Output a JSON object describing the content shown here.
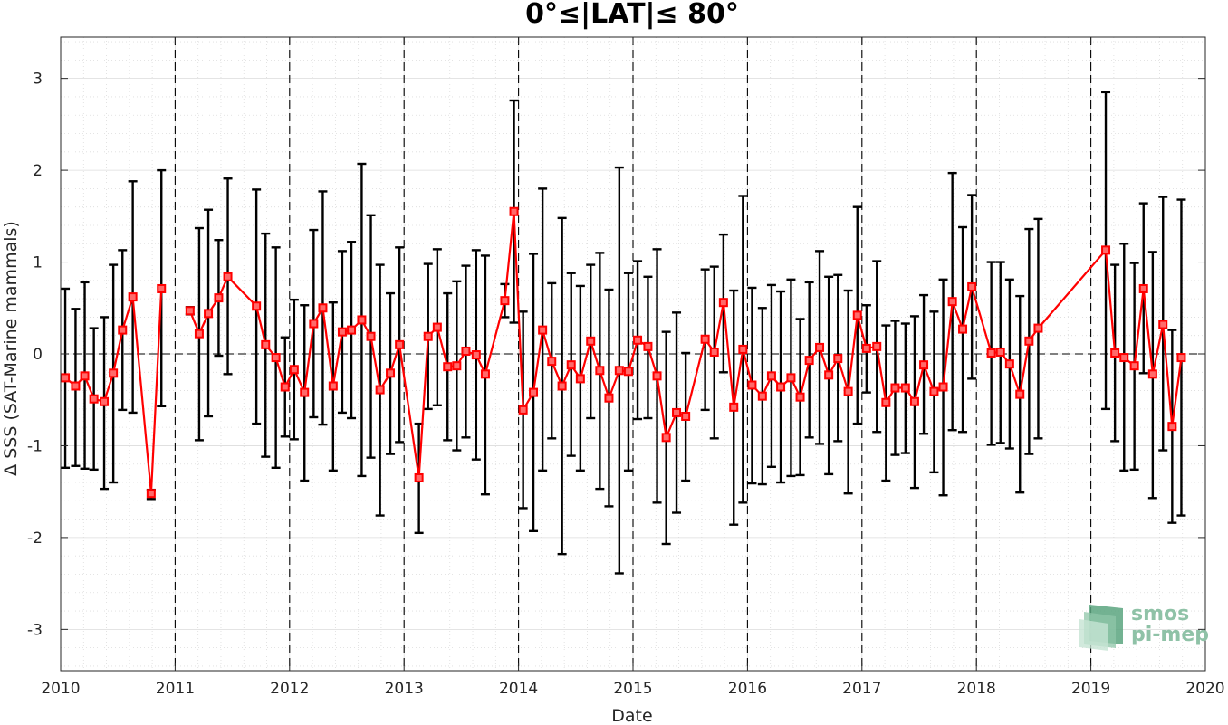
{
  "chart_data": {
    "type": "line",
    "title": "0°≤|LAT|≤ 80°",
    "xlabel": "Date",
    "ylabel": "Δ SSS (SAT-Marine mammals)",
    "xlim": [
      2010,
      2020
    ],
    "ylim": [
      -3.45,
      3.45
    ],
    "x_ticks": [
      "2010",
      "2011",
      "2012",
      "2013",
      "2014",
      "2015",
      "2016",
      "2017",
      "2018",
      "2019",
      "2020"
    ],
    "y_ticks": [
      "-3",
      "-2",
      "-1",
      "0",
      "1",
      "2",
      "3"
    ],
    "grid": true,
    "year_dividers": [
      2011,
      2012,
      2013,
      2014,
      2015,
      2016,
      2017,
      2018,
      2019
    ],
    "zero_line": true,
    "colors": {
      "series": "#ff0000",
      "errorbar": "#000000",
      "grid": "#dcdcdc",
      "logo": "#8fc2a7"
    },
    "series": [
      {
        "marker": "square",
        "error_bars": true,
        "points": [
          {
            "x": 2010.04,
            "y": -0.26,
            "lo": -1.24,
            "hi": 0.71
          },
          {
            "x": 2010.13,
            "y": -0.35,
            "lo": -1.22,
            "hi": 0.49
          },
          {
            "x": 2010.21,
            "y": -0.24,
            "lo": -1.25,
            "hi": 0.78
          },
          {
            "x": 2010.29,
            "y": -0.49,
            "lo": -1.26,
            "hi": 0.28
          },
          {
            "x": 2010.38,
            "y": -0.52,
            "lo": -1.47,
            "hi": 0.4
          },
          {
            "x": 2010.46,
            "y": -0.21,
            "lo": -1.4,
            "hi": 0.97
          },
          {
            "x": 2010.54,
            "y": 0.26,
            "lo": -0.61,
            "hi": 1.13
          },
          {
            "x": 2010.63,
            "y": 0.62,
            "lo": -0.64,
            "hi": 1.88
          },
          {
            "x": 2010.79,
            "y": -1.52,
            "lo": -1.58,
            "hi": -1.48
          },
          {
            "x": 2010.88,
            "y": 0.71,
            "lo": -0.57,
            "hi": 2.0
          },
          {
            "x": null,
            "y": null
          },
          {
            "x": 2011.13,
            "y": 0.47,
            "lo": 0.43,
            "hi": 0.51
          },
          {
            "x": 2011.21,
            "y": 0.22,
            "lo": -0.94,
            "hi": 1.37
          },
          {
            "x": 2011.29,
            "y": 0.44,
            "lo": -0.68,
            "hi": 1.57
          },
          {
            "x": 2011.38,
            "y": 0.61,
            "lo": -0.02,
            "hi": 1.24
          },
          {
            "x": 2011.46,
            "y": 0.84,
            "lo": -0.22,
            "hi": 1.91
          },
          {
            "x": 2011.71,
            "y": 0.52,
            "lo": -0.76,
            "hi": 1.79
          },
          {
            "x": 2011.79,
            "y": 0.1,
            "lo": -1.12,
            "hi": 1.31
          },
          {
            "x": 2011.88,
            "y": -0.04,
            "lo": -1.24,
            "hi": 1.16
          },
          {
            "x": 2011.96,
            "y": -0.36,
            "lo": -0.9,
            "hi": 0.18
          },
          {
            "x": 2012.04,
            "y": -0.17,
            "lo": -0.93,
            "hi": 0.59
          },
          {
            "x": 2012.13,
            "y": -0.42,
            "lo": -1.38,
            "hi": 0.53
          },
          {
            "x": 2012.21,
            "y": 0.33,
            "lo": -0.69,
            "hi": 1.35
          },
          {
            "x": 2012.29,
            "y": 0.5,
            "lo": -0.77,
            "hi": 1.77
          },
          {
            "x": 2012.38,
            "y": -0.35,
            "lo": -1.27,
            "hi": 0.56
          },
          {
            "x": 2012.46,
            "y": 0.24,
            "lo": -0.64,
            "hi": 1.12
          },
          {
            "x": 2012.54,
            "y": 0.26,
            "lo": -0.7,
            "hi": 1.22
          },
          {
            "x": 2012.63,
            "y": 0.37,
            "lo": -1.33,
            "hi": 2.07
          },
          {
            "x": 2012.71,
            "y": 0.19,
            "lo": -1.13,
            "hi": 1.51
          },
          {
            "x": 2012.79,
            "y": -0.39,
            "lo": -1.76,
            "hi": 0.97
          },
          {
            "x": 2012.88,
            "y": -0.21,
            "lo": -1.09,
            "hi": 0.66
          },
          {
            "x": 2012.96,
            "y": 0.1,
            "lo": -0.96,
            "hi": 1.16
          },
          {
            "x": 2013.13,
            "y": -1.35,
            "lo": -1.95,
            "hi": -0.76
          },
          {
            "x": 2013.21,
            "y": 0.19,
            "lo": -0.6,
            "hi": 0.98
          },
          {
            "x": 2013.29,
            "y": 0.29,
            "lo": -0.56,
            "hi": 1.14
          },
          {
            "x": 2013.38,
            "y": -0.14,
            "lo": -0.94,
            "hi": 0.66
          },
          {
            "x": 2013.46,
            "y": -0.13,
            "lo": -1.05,
            "hi": 0.79
          },
          {
            "x": 2013.54,
            "y": 0.03,
            "lo": -0.91,
            "hi": 0.96
          },
          {
            "x": 2013.63,
            "y": -0.01,
            "lo": -1.15,
            "hi": 1.13
          },
          {
            "x": 2013.71,
            "y": -0.22,
            "lo": -1.53,
            "hi": 1.07
          },
          {
            "x": 2013.88,
            "y": 0.58,
            "lo": 0.4,
            "hi": 0.76
          },
          {
            "x": 2013.96,
            "y": 1.55,
            "lo": 0.34,
            "hi": 2.76
          },
          {
            "x": 2014.04,
            "y": -0.61,
            "lo": -1.68,
            "hi": 0.46
          },
          {
            "x": 2014.13,
            "y": -0.42,
            "lo": -1.93,
            "hi": 1.09
          },
          {
            "x": 2014.21,
            "y": 0.26,
            "lo": -1.27,
            "hi": 1.8
          },
          {
            "x": 2014.29,
            "y": -0.08,
            "lo": -0.92,
            "hi": 0.77
          },
          {
            "x": 2014.38,
            "y": -0.35,
            "lo": -2.18,
            "hi": 1.48
          },
          {
            "x": 2014.46,
            "y": -0.12,
            "lo": -1.11,
            "hi": 0.88
          },
          {
            "x": 2014.54,
            "y": -0.27,
            "lo": -1.27,
            "hi": 0.74
          },
          {
            "x": 2014.63,
            "y": 0.14,
            "lo": -0.7,
            "hi": 0.97
          },
          {
            "x": 2014.71,
            "y": -0.18,
            "lo": -1.47,
            "hi": 1.1
          },
          {
            "x": 2014.79,
            "y": -0.48,
            "lo": -1.66,
            "hi": 0.7
          },
          {
            "x": 2014.88,
            "y": -0.18,
            "lo": -2.39,
            "hi": 2.03
          },
          {
            "x": 2014.96,
            "y": -0.19,
            "lo": -1.27,
            "hi": 0.88
          },
          {
            "x": 2015.04,
            "y": 0.15,
            "lo": -0.71,
            "hi": 1.01
          },
          {
            "x": 2015.13,
            "y": 0.08,
            "lo": -0.7,
            "hi": 0.84
          },
          {
            "x": 2015.21,
            "y": -0.24,
            "lo": -1.62,
            "hi": 1.14
          },
          {
            "x": 2015.29,
            "y": -0.91,
            "lo": -2.07,
            "hi": 0.24
          },
          {
            "x": 2015.38,
            "y": -0.64,
            "lo": -1.73,
            "hi": 0.45
          },
          {
            "x": 2015.46,
            "y": -0.68,
            "lo": -1.38,
            "hi": 0.01
          },
          {
            "x": 2015.63,
            "y": 0.16,
            "lo": -0.61,
            "hi": 0.92
          },
          {
            "x": 2015.71,
            "y": 0.02,
            "lo": -0.92,
            "hi": 0.95
          },
          {
            "x": 2015.79,
            "y": 0.56,
            "lo": -0.2,
            "hi": 1.3
          },
          {
            "x": 2015.88,
            "y": -0.58,
            "lo": -1.86,
            "hi": 0.69
          },
          {
            "x": 2015.96,
            "y": 0.05,
            "lo": -1.62,
            "hi": 1.72
          },
          {
            "x": 2016.04,
            "y": -0.34,
            "lo": -1.41,
            "hi": 0.72
          },
          {
            "x": 2016.13,
            "y": -0.46,
            "lo": -1.42,
            "hi": 0.5
          },
          {
            "x": 2016.21,
            "y": -0.24,
            "lo": -1.23,
            "hi": 0.75
          },
          {
            "x": 2016.29,
            "y": -0.36,
            "lo": -1.4,
            "hi": 0.68
          },
          {
            "x": 2016.38,
            "y": -0.26,
            "lo": -1.33,
            "hi": 0.81
          },
          {
            "x": 2016.46,
            "y": -0.47,
            "lo": -1.32,
            "hi": 0.38
          },
          {
            "x": 2016.54,
            "y": -0.07,
            "lo": -0.91,
            "hi": 0.78
          },
          {
            "x": 2016.63,
            "y": 0.07,
            "lo": -0.98,
            "hi": 1.12
          },
          {
            "x": 2016.71,
            "y": -0.23,
            "lo": -1.31,
            "hi": 0.84
          },
          {
            "x": 2016.79,
            "y": -0.05,
            "lo": -0.95,
            "hi": 0.86
          },
          {
            "x": 2016.88,
            "y": -0.41,
            "lo": -1.52,
            "hi": 0.69
          },
          {
            "x": 2016.96,
            "y": 0.42,
            "lo": -0.76,
            "hi": 1.6
          },
          {
            "x": 2017.04,
            "y": 0.06,
            "lo": -0.42,
            "hi": 0.53
          },
          {
            "x": 2017.13,
            "y": 0.08,
            "lo": -0.85,
            "hi": 1.01
          },
          {
            "x": 2017.21,
            "y": -0.53,
            "lo": -1.38,
            "hi": 0.31
          },
          {
            "x": 2017.29,
            "y": -0.37,
            "lo": -1.1,
            "hi": 0.36
          },
          {
            "x": 2017.38,
            "y": -0.37,
            "lo": -1.08,
            "hi": 0.33
          },
          {
            "x": 2017.46,
            "y": -0.52,
            "lo": -1.46,
            "hi": 0.41
          },
          {
            "x": 2017.54,
            "y": -0.12,
            "lo": -0.87,
            "hi": 0.64
          },
          {
            "x": 2017.63,
            "y": -0.41,
            "lo": -1.29,
            "hi": 0.46
          },
          {
            "x": 2017.71,
            "y": -0.36,
            "lo": -1.54,
            "hi": 0.81
          },
          {
            "x": 2017.79,
            "y": 0.57,
            "lo": -0.83,
            "hi": 1.97
          },
          {
            "x": 2017.88,
            "y": 0.27,
            "lo": -0.85,
            "hi": 1.38
          },
          {
            "x": 2017.96,
            "y": 0.73,
            "lo": -0.27,
            "hi": 1.73
          },
          {
            "x": 2018.13,
            "y": 0.01,
            "lo": -0.99,
            "hi": 1.0
          },
          {
            "x": 2018.21,
            "y": 0.02,
            "lo": -0.97,
            "hi": 1.0
          },
          {
            "x": 2018.29,
            "y": -0.11,
            "lo": -1.03,
            "hi": 0.81
          },
          {
            "x": 2018.38,
            "y": -0.44,
            "lo": -1.51,
            "hi": 0.63
          },
          {
            "x": 2018.46,
            "y": 0.14,
            "lo": -1.09,
            "hi": 1.36
          },
          {
            "x": 2018.54,
            "y": 0.28,
            "lo": -0.92,
            "hi": 1.47
          },
          {
            "x": 2019.13,
            "y": 1.13,
            "lo": -0.6,
            "hi": 2.85
          },
          {
            "x": 2019.21,
            "y": 0.01,
            "lo": -0.95,
            "hi": 0.97
          },
          {
            "x": 2019.29,
            "y": -0.04,
            "lo": -1.27,
            "hi": 1.2
          },
          {
            "x": 2019.38,
            "y": -0.13,
            "lo": -1.26,
            "hi": 0.99
          },
          {
            "x": 2019.46,
            "y": 0.71,
            "lo": -0.21,
            "hi": 1.64
          },
          {
            "x": 2019.54,
            "y": -0.22,
            "lo": -1.57,
            "hi": 1.11
          },
          {
            "x": 2019.63,
            "y": 0.32,
            "lo": -1.05,
            "hi": 1.71
          },
          {
            "x": 2019.71,
            "y": -0.79,
            "lo": -1.84,
            "hi": 0.26
          },
          {
            "x": 2019.79,
            "y": -0.04,
            "lo": -1.76,
            "hi": 1.68
          }
        ]
      }
    ]
  },
  "logo": {
    "line1": "smos",
    "line2": "pi-mep"
  }
}
